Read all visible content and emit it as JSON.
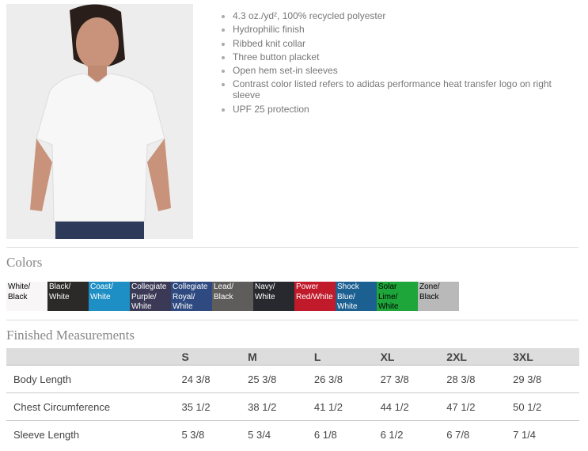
{
  "features": [
    "4.3 oz./yd², 100% recycled polyester",
    "Hydrophilic finish",
    "Ribbed knit collar",
    "Three button placket",
    "Open hem set-in sleeves",
    "Contrast color listed refers to adidas performance heat transfer logo on right sleeve",
    "UPF 25 protection"
  ],
  "colors_title": "Colors",
  "colors": [
    {
      "label": "White/ Black",
      "bg": "#f8f6f6",
      "fg": "#000000"
    },
    {
      "label": "Black/ White",
      "bg": "#2b2a29",
      "fg": "#ffffff"
    },
    {
      "label": "Coast/ White",
      "bg": "#1e8fc4",
      "fg": "#ffffff"
    },
    {
      "label": "Collegiate Purple/ White",
      "bg": "#3a3a56",
      "fg": "#ffffff"
    },
    {
      "label": "Collegiate Royal/ White",
      "bg": "#2f4a80",
      "fg": "#ffffff"
    },
    {
      "label": "Lead/ Black",
      "bg": "#5f5d5b",
      "fg": "#ffffff"
    },
    {
      "label": "Navy/ White",
      "bg": "#28292f",
      "fg": "#ffffff"
    },
    {
      "label": "Power Red/White",
      "bg": "#c11a2a",
      "fg": "#ffffff"
    },
    {
      "label": "Shock Blue/ White",
      "bg": "#1c5f91",
      "fg": "#ffffff"
    },
    {
      "label": "Solar Lime/ White",
      "bg": "#1ea63a",
      "fg": "#000000"
    },
    {
      "label": "Zone/ Black",
      "bg": "#b9b9b9",
      "fg": "#000000"
    }
  ],
  "measurements_title": "Finished Measurements",
  "table": {
    "headers": [
      "",
      "S",
      "M",
      "L",
      "XL",
      "2XL",
      "3XL"
    ],
    "rows": [
      [
        "Body Length",
        "24 3/8",
        "25 3/8",
        "26 3/8",
        "27 3/8",
        "28 3/8",
        "29 3/8"
      ],
      [
        "Chest Circumference",
        "35 1/2",
        "38 1/2",
        "41 1/2",
        "44 1/2",
        "47 1/2",
        "50 1/2"
      ],
      [
        "Sleeve Length",
        "5 3/8",
        "5 3/4",
        "6 1/8",
        "6 1/2",
        "6 7/8",
        "7 1/4"
      ]
    ]
  }
}
